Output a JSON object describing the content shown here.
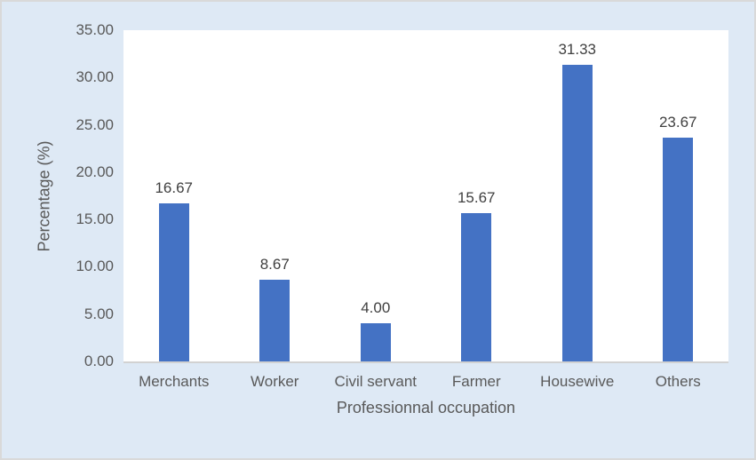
{
  "chart_data": {
    "type": "bar",
    "title": "",
    "xlabel": "Professionnal occupation",
    "ylabel": "Percentage (%)",
    "categories": [
      "Merchants",
      "Worker",
      "Civil servant",
      "Farmer",
      "Housewive",
      "Others"
    ],
    "values": [
      16.67,
      8.67,
      4.0,
      15.67,
      31.33,
      23.67
    ],
    "value_labels": [
      "16.67",
      "8.67",
      "4.00",
      "15.67",
      "31.33",
      "23.67"
    ],
    "ylim": [
      0,
      35
    ],
    "ytick_labels": [
      "0.00",
      "5.00",
      "10.00",
      "15.00",
      "20.00",
      "25.00",
      "30.00",
      "35.00"
    ],
    "grid": false,
    "legend": false,
    "colors": {
      "bar": "#4472C4",
      "canvas_background": "#DEE9F5",
      "plot_background": "#FFFFFF",
      "chart_border": "#D9D9D9",
      "axis_line": "#D2D2D2",
      "axis_text": "#595959",
      "data_label_text": "#404040"
    }
  }
}
